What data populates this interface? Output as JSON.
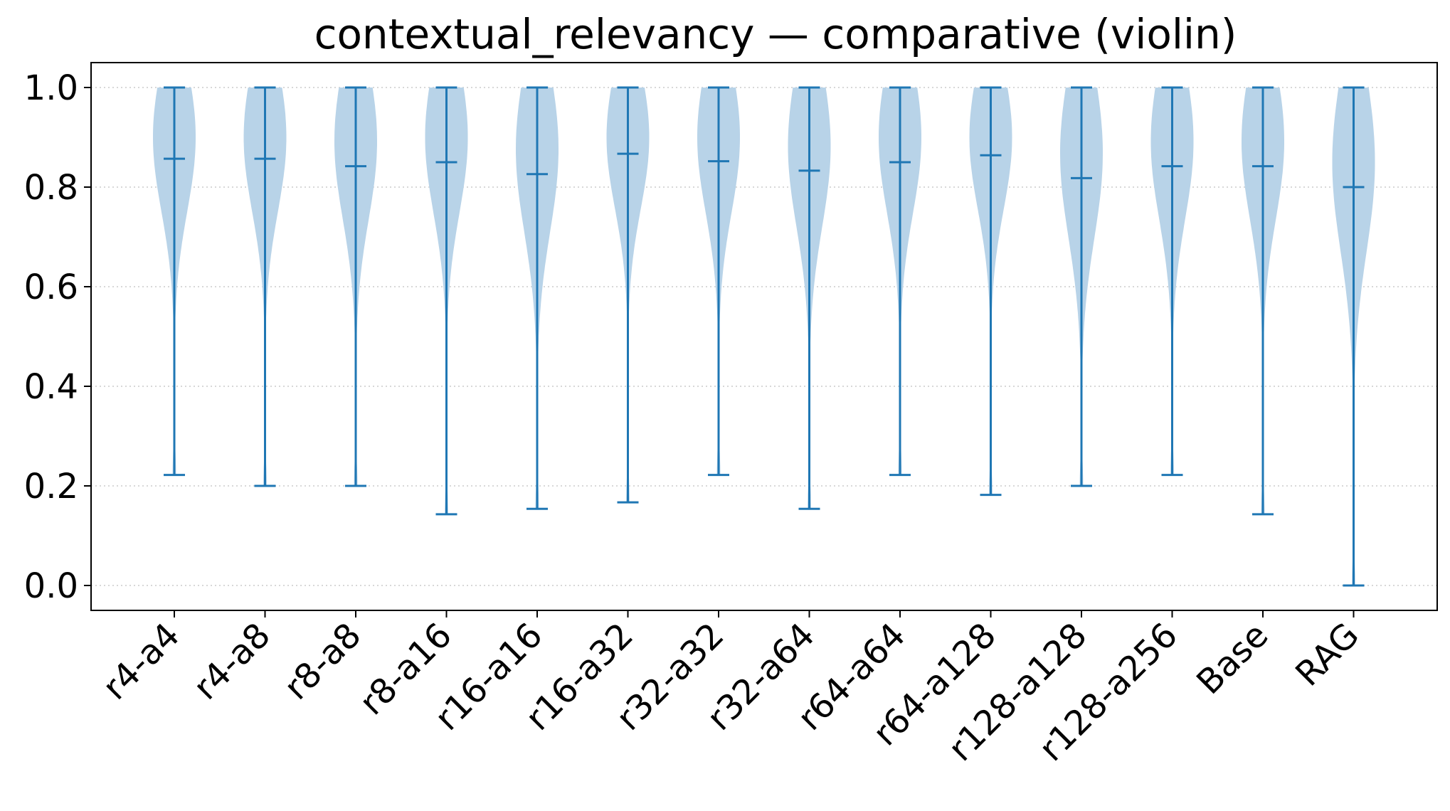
{
  "chart_data": {
    "type": "violin",
    "title": "contextual_relevancy — comparative (violin)",
    "xlabel": "",
    "ylabel": "",
    "ylim": [
      -0.05,
      1.05
    ],
    "yticks": [
      0.0,
      0.2,
      0.4,
      0.6,
      0.8,
      1.0
    ],
    "ytick_labels": [
      "0.0",
      "0.2",
      "0.4",
      "0.6",
      "0.8",
      "1.0"
    ],
    "grid": "horizontal dotted",
    "body_color": "#b8d3e8",
    "line_color": "#1f77b4",
    "categories": [
      "r4-a4",
      "r4-a8",
      "r8-a8",
      "r8-a16",
      "r16-a16",
      "r16-a32",
      "r32-a32",
      "r32-a64",
      "r64-a64",
      "r64-a128",
      "r128-a128",
      "r128-a256",
      "Base",
      "RAG"
    ],
    "series": [
      {
        "category": "r4-a4",
        "min": 0.222,
        "mean": 0.857,
        "max": 1.0
      },
      {
        "category": "r4-a8",
        "min": 0.2,
        "mean": 0.857,
        "max": 1.0
      },
      {
        "category": "r8-a8",
        "min": 0.2,
        "mean": 0.842,
        "max": 1.0
      },
      {
        "category": "r8-a16",
        "min": 0.143,
        "mean": 0.85,
        "max": 1.0
      },
      {
        "category": "r16-a16",
        "min": 0.154,
        "mean": 0.826,
        "max": 1.0
      },
      {
        "category": "r16-a32",
        "min": 0.167,
        "mean": 0.867,
        "max": 1.0
      },
      {
        "category": "r32-a32",
        "min": 0.222,
        "mean": 0.852,
        "max": 1.0
      },
      {
        "category": "r32-a64",
        "min": 0.154,
        "mean": 0.833,
        "max": 1.0
      },
      {
        "category": "r64-a64",
        "min": 0.222,
        "mean": 0.85,
        "max": 1.0
      },
      {
        "category": "r64-a128",
        "min": 0.182,
        "mean": 0.864,
        "max": 1.0
      },
      {
        "category": "r128-a128",
        "min": 0.2,
        "mean": 0.818,
        "max": 1.0
      },
      {
        "category": "r128-a256",
        "min": 0.222,
        "mean": 0.842,
        "max": 1.0
      },
      {
        "category": "Base",
        "min": 0.143,
        "mean": 0.842,
        "max": 1.0
      },
      {
        "category": "RAG",
        "min": 0.0,
        "mean": 0.8,
        "max": 1.0
      }
    ]
  }
}
